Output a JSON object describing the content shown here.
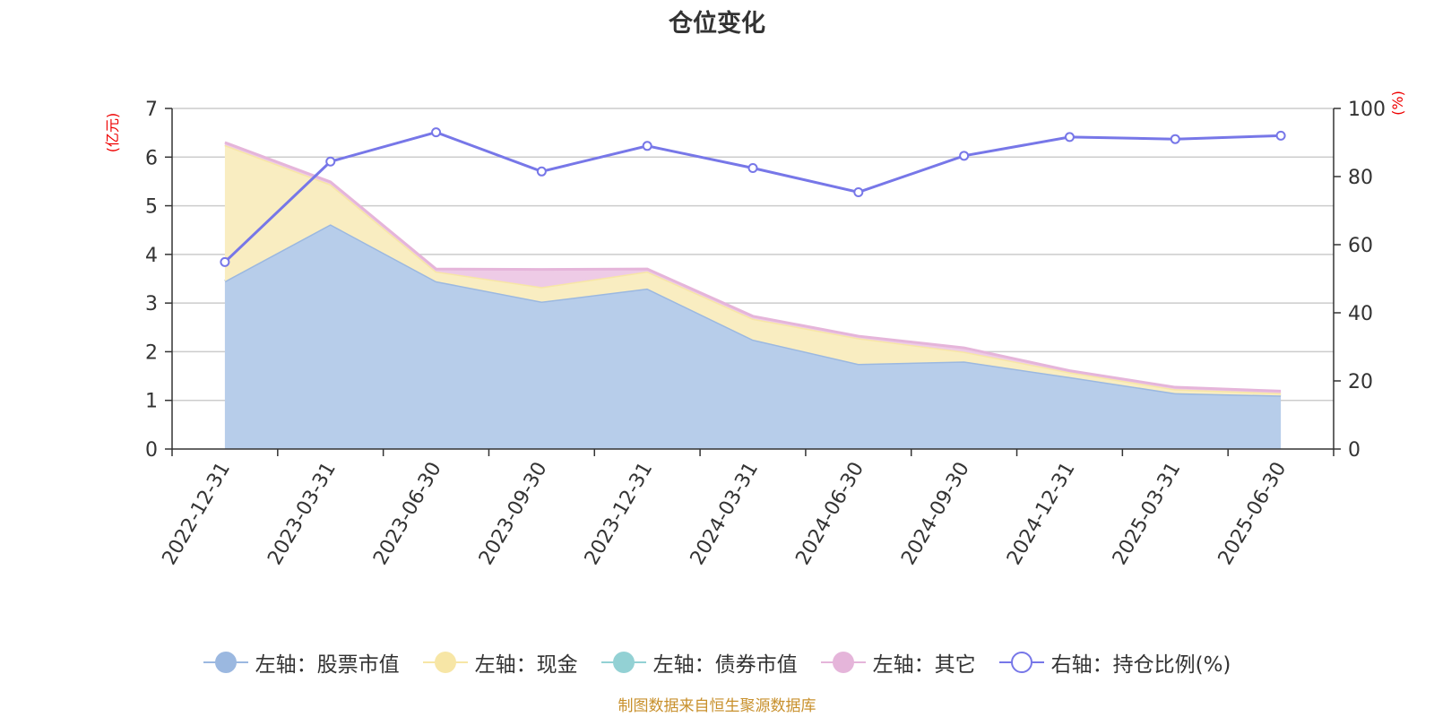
{
  "title": "仓位变化",
  "source": "制图数据来自恒生聚源数据库",
  "chart_data": {
    "type": "area",
    "categories": [
      "2022-12-31",
      "2023-03-31",
      "2023-06-30",
      "2023-09-30",
      "2023-12-31",
      "2024-03-31",
      "2024-06-30",
      "2024-09-30",
      "2024-12-31",
      "2025-03-31",
      "2025-06-30"
    ],
    "left_axis": {
      "label": "(亿元)",
      "min": 0,
      "max": 7,
      "ticks": [
        "0",
        "1",
        "2",
        "3",
        "4",
        "5",
        "6",
        "7"
      ]
    },
    "right_axis": {
      "label": "(%)",
      "min": 0,
      "max": 100,
      "ticks": [
        "0",
        "20",
        "40",
        "60",
        "80",
        "100"
      ]
    },
    "series": [
      {
        "name": "左轴：股票市值",
        "axis": "left",
        "stack": true,
        "color": "#9bb8e0",
        "fill": "#b7cdea",
        "values": [
          3.45,
          4.62,
          3.45,
          3.03,
          3.3,
          2.25,
          1.75,
          1.8,
          1.48,
          1.15,
          1.1
        ]
      },
      {
        "name": "左轴：现金",
        "axis": "left",
        "stack": true,
        "color": "#f7e6a6",
        "fill": "#f9edc1",
        "values": [
          2.8,
          0.82,
          0.2,
          0.3,
          0.35,
          0.43,
          0.53,
          0.2,
          0.1,
          0.08,
          0.05
        ]
      },
      {
        "name": "左轴：债券市值",
        "axis": "left",
        "stack": true,
        "color": "#93d1d4",
        "fill": "#b5e2e4",
        "values": [
          0,
          0,
          0,
          0,
          0,
          0,
          0,
          0,
          0,
          0,
          0
        ]
      },
      {
        "name": "左轴：其它",
        "axis": "left",
        "stack": true,
        "color": "#e5b5da",
        "fill": "#eecbe6",
        "values": [
          0.05,
          0.05,
          0.05,
          0.36,
          0.05,
          0.05,
          0.04,
          0.08,
          0.03,
          0.04,
          0.04
        ]
      },
      {
        "name": "右轴：持仓比例(%)",
        "axis": "right",
        "stack": false,
        "color": "#7777e8",
        "values": [
          54.9,
          84.4,
          93.0,
          81.5,
          89.0,
          82.5,
          75.4,
          86.1,
          91.6,
          91.0,
          92.0
        ]
      }
    ],
    "grid": true,
    "legend": "bottom"
  }
}
